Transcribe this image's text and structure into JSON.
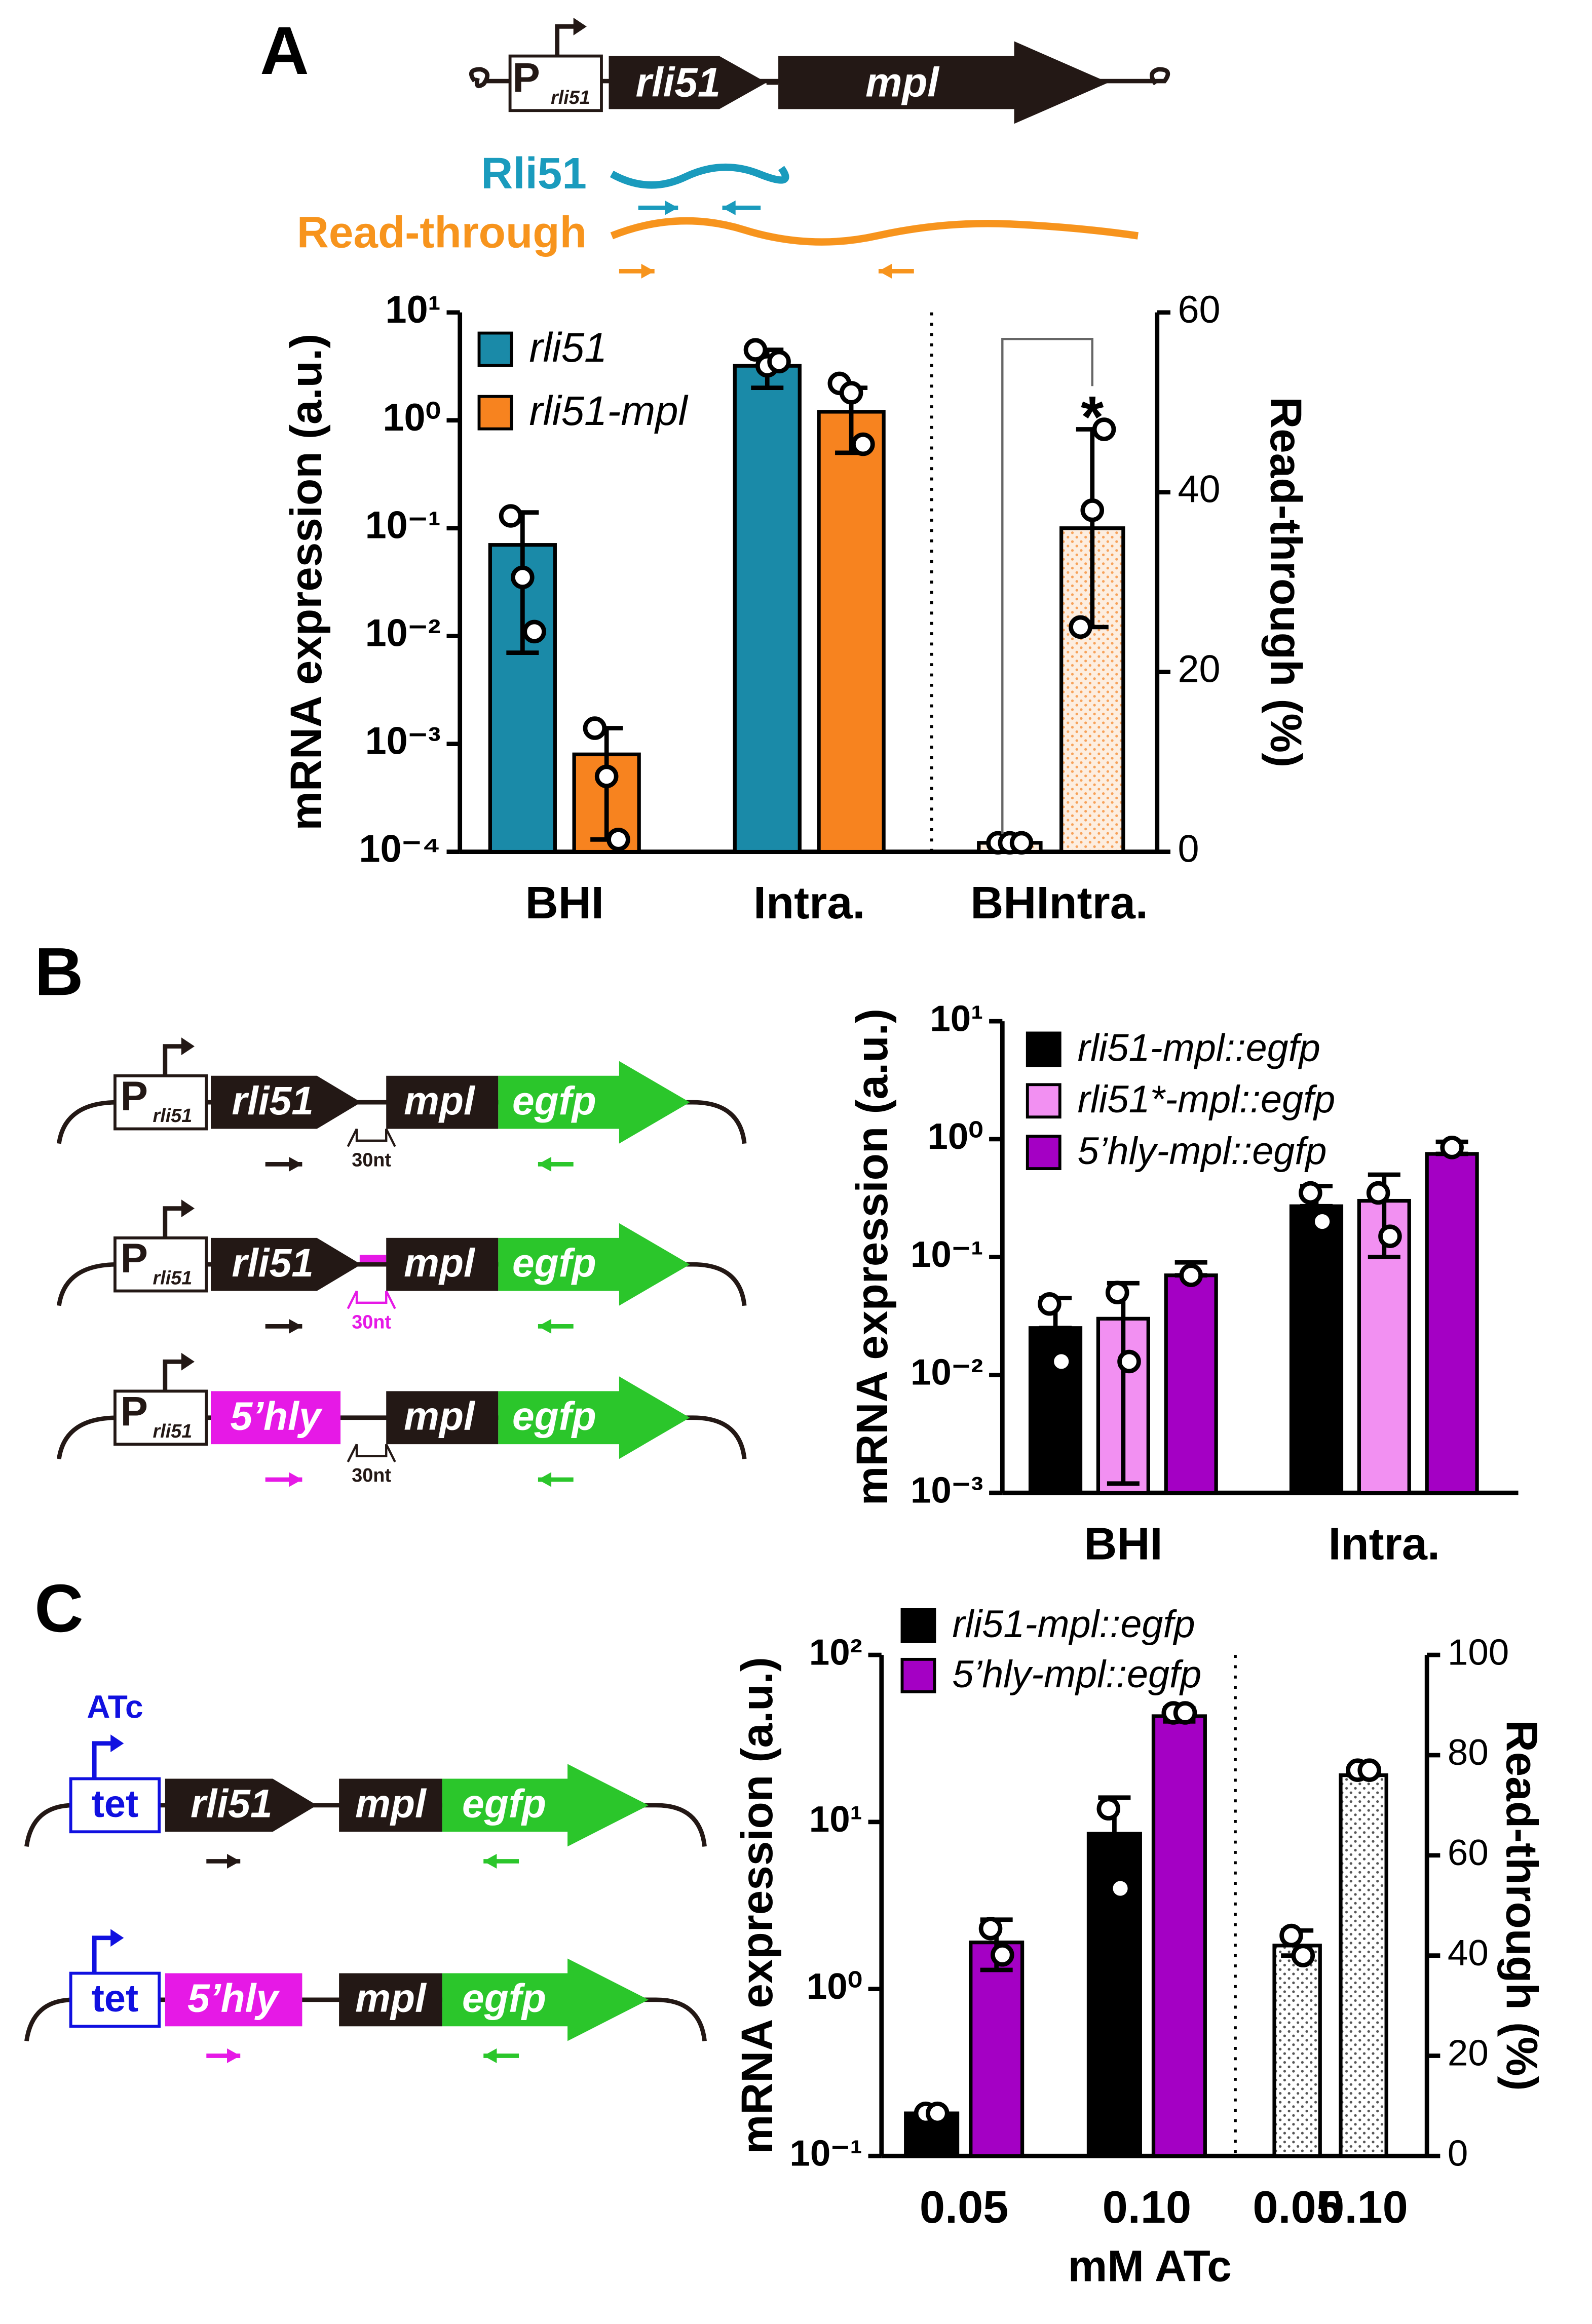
{
  "chart_data": [
    {
      "type": "bar",
      "panel": "A",
      "ylabel": "mRNA expression (a.u.)",
      "y2label": "Read-through (%)",
      "log_y": true,
      "ylim": [
        0.0001,
        10
      ],
      "yticks": [
        {
          "value": 0.0001,
          "label": "10⁻⁴"
        },
        {
          "value": 0.001,
          "label": "10⁻³"
        },
        {
          "value": 0.01,
          "label": "10⁻²"
        },
        {
          "value": 0.1,
          "label": "10⁻¹"
        },
        {
          "value": 1,
          "label": "10⁰"
        },
        {
          "value": 10,
          "label": "10¹"
        }
      ],
      "y2lim": [
        0,
        60
      ],
      "y2ticks": [
        0,
        20,
        40,
        60
      ],
      "categories": [
        "BHI",
        "Intra."
      ],
      "series": [
        {
          "name": "rli51",
          "color": "#1a8aa8",
          "values": [
            0.07,
            3.2
          ],
          "errors": [
            [
              0.007,
              0.14
            ],
            [
              2,
              4.5
            ]
          ],
          "points": [
            [
              0.13,
              0.035,
              0.011
            ],
            [
              4.5,
              3.2,
              3.5
            ]
          ]
        },
        {
          "name": "rli51-mpl",
          "color": "#f7831f",
          "values": [
            0.0008,
            1.2
          ],
          "errors": [
            [
              0.00013,
              0.0014
            ],
            [
              0.5,
              2
            ]
          ],
          "points": [
            [
              0.0014,
              0.0005,
              0.00013
            ],
            [
              2.2,
              1.8,
              0.6
            ]
          ]
        }
      ],
      "y2_categories": [
        "BHI",
        "Intra."
      ],
      "y2_series": [
        {
          "axis": "y2",
          "color": "#fdeee0",
          "dot_color": "#f7a25a",
          "fill_pattern": "dots",
          "values": [
            1,
            36
          ],
          "errors": [
            [
              0.5,
              1.5
            ],
            [
              25,
              47
            ]
          ],
          "points": [
            [
              1,
              1,
              1
            ],
            [
              25,
              38,
              47
            ]
          ]
        }
      ],
      "annotation": "*"
    },
    {
      "type": "bar",
      "panel": "B",
      "ylabel": "mRNA expression (a.u.)",
      "log_y": true,
      "ylim": [
        0.001,
        10
      ],
      "yticks": [
        {
          "value": 0.001,
          "label": "10⁻³"
        },
        {
          "value": 0.01,
          "label": "10⁻²"
        },
        {
          "value": 0.1,
          "label": "10⁻¹"
        },
        {
          "value": 1,
          "label": "10⁰"
        },
        {
          "value": 10,
          "label": "10¹"
        }
      ],
      "categories": [
        "BHI",
        "Intra."
      ],
      "series": [
        {
          "name": "rli51-mpl::egfp",
          "color": "#000000",
          "values": [
            0.025,
            0.27
          ],
          "errors": [
            [
              0.025,
              0.045
            ],
            [
              0.27,
              0.4
            ]
          ],
          "points": [
            [
              0.04,
              0.013
            ],
            [
              0.35,
              0.2
            ]
          ]
        },
        {
          "name": "rli51*-mpl::egfp",
          "color": "#f290f2",
          "values": [
            0.03,
            0.3
          ],
          "errors": [
            [
              0.0012,
              0.06
            ],
            [
              0.1,
              0.5
            ]
          ],
          "points": [
            [
              0.05,
              0.013
            ],
            [
              0.35,
              0.15
            ]
          ]
        },
        {
          "name": "5’hly-mpl::egfp",
          "color": "#a400c4",
          "values": [
            0.07,
            0.75
          ],
          "errors": [
            [
              0.07,
              0.09
            ],
            [
              0.75,
              0.95
            ]
          ],
          "points": [
            [
              0.07
            ],
            [
              0.85
            ]
          ]
        }
      ]
    },
    {
      "type": "bar",
      "panel": "C",
      "ylabel": "mRNA expression (a.u.)",
      "y2label": "Read-through (%)",
      "xlabel": "mM ATc",
      "log_y": true,
      "ylim": [
        0.1,
        100
      ],
      "yticks": [
        {
          "value": 0.1,
          "label": "10⁻¹"
        },
        {
          "value": 1,
          "label": "10⁰"
        },
        {
          "value": 10,
          "label": "10¹"
        },
        {
          "value": 100,
          "label": "10²"
        }
      ],
      "y2lim": [
        0,
        100
      ],
      "y2ticks": [
        0,
        20,
        40,
        60,
        80,
        100
      ],
      "categories": [
        "0.05",
        "0.10"
      ],
      "series": [
        {
          "name": "rli51-mpl::egfp",
          "color": "#000000",
          "values": [
            0.18,
            8.5
          ],
          "errors": [
            [
              0.18,
              0.18
            ],
            [
              5,
              14
            ]
          ],
          "points": [
            [
              0.18,
              0.18
            ],
            [
              12,
              4
            ]
          ]
        },
        {
          "name": "5’hly-mpl::egfp",
          "color": "#a400c4",
          "values": [
            1.9,
            43
          ],
          "errors": [
            [
              1.3,
              2.6
            ],
            [
              40,
              48
            ]
          ],
          "points": [
            [
              2.3,
              1.6
            ],
            [
              45,
              45
            ]
          ]
        }
      ],
      "y2_categories": [
        "0.05",
        "0.10"
      ],
      "y2_series": [
        {
          "axis": "y2",
          "color": "#ffffff",
          "dot_color": "#555555",
          "fill_pattern": "dots",
          "values": [
            42,
            76
          ],
          "errors": [
            [
              40,
              45
            ],
            [
              76,
              76
            ]
          ],
          "points": [
            [
              44,
              40
            ],
            [
              77,
              77
            ]
          ]
        }
      ]
    }
  ],
  "diagrams": {
    "A": {
      "promoter": "P",
      "promoter_sub": "rli51",
      "gene1": "rli51",
      "gene2": "mpl",
      "transcript1": "Rli51",
      "transcript2": "Read-through"
    },
    "B": [
      {
        "promoter": "P",
        "promoter_sub": "rli51",
        "gene1": "rli51",
        "gene2": "mpl",
        "gene3": "egfp",
        "spacer": "30nt"
      },
      {
        "promoter": "P",
        "promoter_sub": "rli51",
        "gene1": "rli51",
        "gene2": "mpl",
        "gene3": "egfp",
        "spacer": "30nt"
      },
      {
        "promoter": "P",
        "promoter_sub": "rli51",
        "gene1": "5’hly",
        "gene2": "mpl",
        "gene3": "egfp",
        "spacer": "30nt"
      }
    ],
    "C": [
      {
        "inducer": "ATc",
        "promoter": "tet",
        "gene1": "rli51",
        "gene2": "mpl",
        "gene3": "egfp"
      },
      {
        "promoter": "tet",
        "gene1": "5’hly",
        "gene2": "mpl",
        "gene3": "egfp"
      }
    ]
  }
}
